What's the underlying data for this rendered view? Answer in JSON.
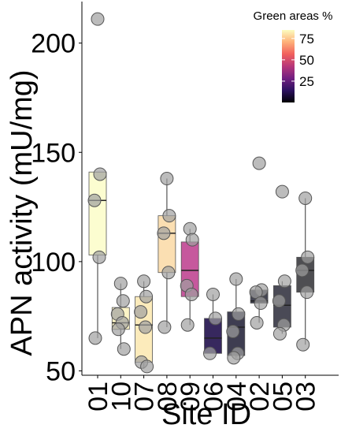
{
  "chart_data": {
    "type": "box",
    "xlabel": "Site ID",
    "ylabel": "APN activity (mU/mg)",
    "ylim": [
      48,
      219
    ],
    "yticks": [
      50,
      100,
      150,
      200
    ],
    "categories": [
      "01",
      "10",
      "07",
      "08",
      "09",
      "06",
      "04",
      "02",
      "05",
      "03"
    ],
    "boxes": [
      {
        "site": "01",
        "q1": 103,
        "median": 128,
        "q3": 141,
        "whisker_low": 65,
        "whisker_high": 141,
        "green_pct": 82,
        "color": "#FCFDD0",
        "points": [
          211,
          140,
          128,
          102,
          65
        ]
      },
      {
        "site": "10",
        "q1": 69,
        "median": 72,
        "q3": 79,
        "whisker_low": 60,
        "whisker_high": 90,
        "green_pct": 80,
        "color": "#FCF4C6",
        "points": [
          90,
          82,
          76,
          72,
          69,
          60
        ]
      },
      {
        "site": "07",
        "q1": 54,
        "median": 71,
        "q3": 84,
        "whisker_low": 51,
        "whisker_high": 91,
        "green_pct": 78,
        "color": "#FCEBBB",
        "points": [
          91,
          84,
          77,
          70,
          54,
          52
        ]
      },
      {
        "site": "08",
        "q1": 95,
        "median": 113,
        "q3": 121,
        "whisker_low": 70,
        "whisker_high": 138,
        "green_pct": 76,
        "color": "#FBDFB2",
        "points": [
          138,
          121,
          113,
          95,
          70
        ]
      },
      {
        "site": "09",
        "q1": 84,
        "median": 96,
        "q3": 109,
        "whisker_low": 71,
        "whisker_high": 115,
        "green_pct": 55,
        "color": "#C6589D",
        "points": [
          115,
          110,
          89,
          85,
          71
        ]
      },
      {
        "site": "06",
        "q1": 58,
        "median": 65,
        "q3": 74,
        "whisker_low": 58,
        "whisker_high": 85,
        "green_pct": 18,
        "color": "#37285E",
        "points": [
          85,
          74,
          58
        ]
      },
      {
        "site": "04",
        "q1": 57,
        "median": 70,
        "q3": 77,
        "whisker_low": 56,
        "whisker_high": 92,
        "green_pct": 8,
        "color": "#3E3D51",
        "points": [
          92,
          76,
          68,
          58,
          56
        ]
      },
      {
        "site": "02",
        "q1": 81,
        "median": 82,
        "q3": 87,
        "whisker_low": 72,
        "whisker_high": 87,
        "green_pct": 6,
        "color": "#444553",
        "points": [
          145,
          87,
          86,
          81,
          72
        ]
      },
      {
        "site": "05",
        "q1": 70,
        "median": 80,
        "q3": 89,
        "whisker_low": 67,
        "whisker_high": 91,
        "green_pct": 5,
        "color": "#4A4A56",
        "points": [
          132,
          91,
          82,
          71,
          67
        ]
      },
      {
        "site": "03",
        "q1": 86,
        "median": 96,
        "q3": 102,
        "whisker_low": 62,
        "whisker_high": 129,
        "green_pct": 4,
        "color": "#4E4E52",
        "points": [
          129,
          102,
          96,
          86,
          62
        ]
      }
    ],
    "legend": {
      "title": "Green areas %",
      "position": "top-right",
      "ticks": [
        75,
        50,
        25
      ],
      "range": [
        0,
        85
      ],
      "colors": [
        "#000004",
        "#2C115F",
        "#721F81",
        "#B73779",
        "#F1605D",
        "#FEB078",
        "#FCFDBF"
      ]
    },
    "grid": false
  }
}
